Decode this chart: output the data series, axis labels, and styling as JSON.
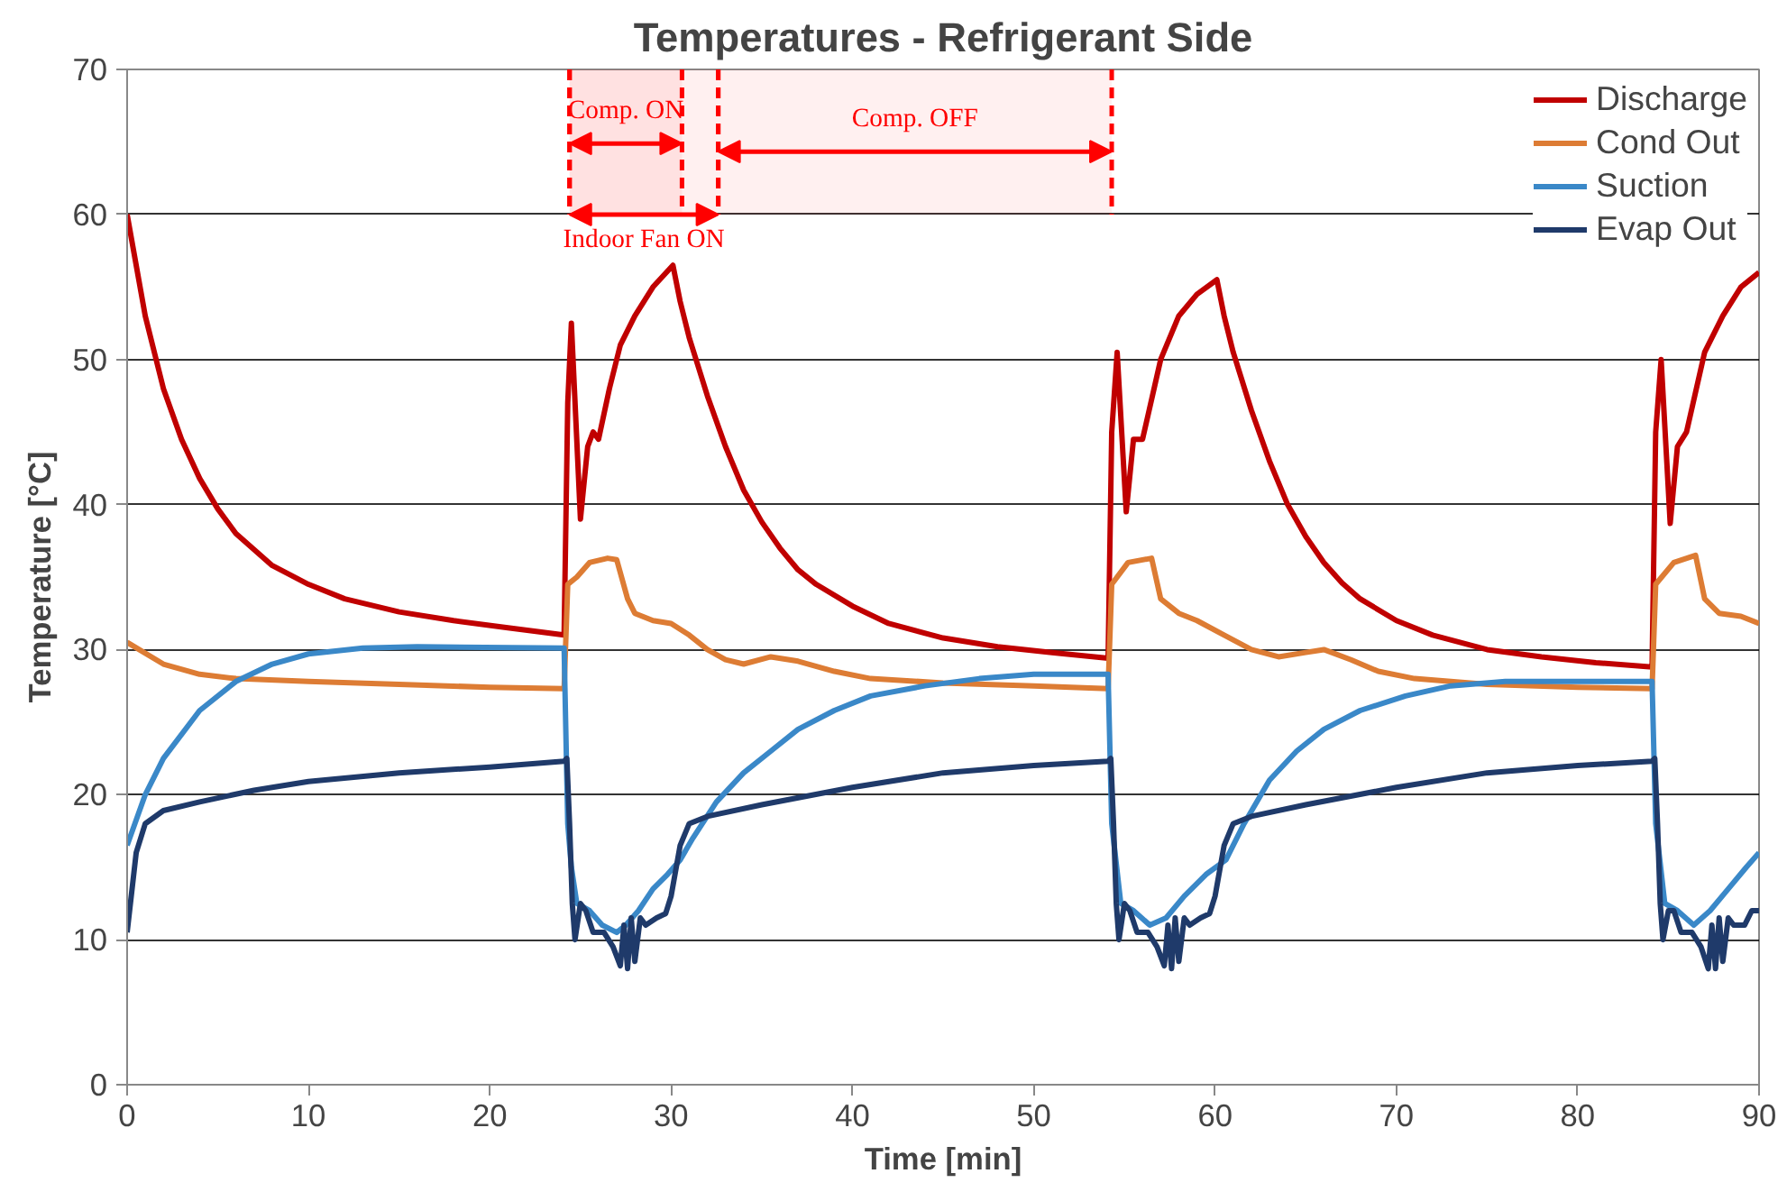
{
  "chart_data": {
    "type": "line",
    "title": "Temperatures - Refrigerant Side",
    "xlabel": "Time [min]",
    "ylabel": "Temperature [°C]",
    "xlim": [
      0,
      90
    ],
    "ylim": [
      0,
      70
    ],
    "xticks": [
      0,
      10,
      20,
      30,
      40,
      50,
      60,
      70,
      80,
      90
    ],
    "yticks": [
      0,
      10,
      20,
      30,
      40,
      50,
      60,
      70
    ],
    "grid": "y",
    "legend": "top right",
    "line_style": "solid",
    "marker": "none",
    "bands": [
      {
        "axis": "x",
        "from": 24.4,
        "to": 30.6,
        "label": "Comp. ON",
        "color": "#ff0000"
      },
      {
        "axis": "x",
        "from": 32.6,
        "to": 54.3,
        "label": "Comp. OFF",
        "color": "#ff0000"
      },
      {
        "axis": "x",
        "from": 24.4,
        "to": 32.6,
        "label": "Indoor Fan ON",
        "color": "#ff0000"
      }
    ],
    "series": [
      {
        "name": "Discharge",
        "color": "#c00000",
        "x": [
          0,
          1,
          2,
          3,
          4,
          5,
          6,
          8,
          10,
          12,
          15,
          18,
          21,
          24.1,
          24.3,
          24.5,
          25.0,
          25.4,
          25.7,
          26,
          26.6,
          27.2,
          28,
          29,
          30.1,
          30.5,
          31,
          32,
          33,
          34,
          35,
          36,
          37,
          38,
          40,
          42,
          45,
          48,
          51,
          54.1,
          54.3,
          54.6,
          55.1,
          55.5,
          56,
          57,
          58,
          59,
          60.1,
          60.5,
          61,
          62,
          63,
          64,
          65,
          66,
          67,
          68,
          70,
          72,
          75,
          78,
          81,
          84.1,
          84.3,
          84.6,
          85.1,
          85.5,
          86,
          87,
          88,
          89,
          90
        ],
        "values": [
          60,
          53,
          48,
          44.5,
          41.8,
          39.7,
          38,
          35.8,
          34.5,
          33.5,
          32.6,
          32,
          31.5,
          31,
          47,
          52.5,
          39,
          44,
          45,
          44.5,
          48,
          51,
          53,
          55,
          56.5,
          54,
          51.5,
          47.5,
          44,
          41,
          38.8,
          37,
          35.5,
          34.5,
          33,
          31.8,
          30.8,
          30.2,
          29.8,
          29.4,
          45,
          50.5,
          39.5,
          44.5,
          44.5,
          50,
          53,
          54.5,
          55.5,
          53,
          50.5,
          46.5,
          43,
          40,
          37.8,
          36,
          34.6,
          33.5,
          32,
          31,
          30,
          29.5,
          29.1,
          28.8,
          45,
          50,
          38.7,
          44,
          45,
          50.5,
          53,
          55,
          56
        ]
      },
      {
        "name": "Cond Out",
        "color": "#dd7c34",
        "x": [
          0,
          2,
          4,
          6,
          10,
          15,
          20,
          24.1,
          24.3,
          24.8,
          25.5,
          26.5,
          27,
          27.6,
          28,
          29,
          30,
          31,
          32,
          33,
          34,
          35.5,
          37,
          39,
          41,
          45,
          50,
          54.1,
          54.3,
          55.2,
          56.5,
          57,
          58,
          59,
          60.5,
          62,
          63.5,
          65,
          66,
          67.5,
          69,
          71,
          75,
          80,
          84.1,
          84.3,
          85.3,
          86.5,
          87,
          87.8,
          89,
          90
        ],
        "values": [
          30.5,
          29,
          28.3,
          28,
          27.8,
          27.6,
          27.4,
          27.3,
          34.5,
          35,
          36,
          36.3,
          36.2,
          33.5,
          32.5,
          32,
          31.8,
          31,
          30,
          29.3,
          29,
          29.5,
          29.2,
          28.5,
          28,
          27.7,
          27.5,
          27.3,
          34.5,
          36,
          36.3,
          33.5,
          32.5,
          32,
          31,
          30,
          29.5,
          29.8,
          30,
          29.3,
          28.5,
          28,
          27.6,
          27.4,
          27.3,
          34.5,
          36,
          36.5,
          33.5,
          32.5,
          32.3,
          31.8
        ]
      },
      {
        "name": "Suction",
        "color": "#3a88c8",
        "x": [
          0,
          1,
          2,
          4,
          6,
          8,
          10,
          13,
          16,
          24.1,
          24.3,
          24.5,
          24.8,
          25.5,
          26.2,
          27,
          27.5,
          28.2,
          29,
          29.8,
          30.5,
          31.2,
          32.5,
          34,
          35.5,
          37,
          39,
          41,
          44,
          47,
          50,
          54.1,
          54.3,
          54.8,
          55.5,
          56.4,
          57.3,
          58.3,
          59.5,
          60.6,
          61.6,
          63,
          64.5,
          66,
          68,
          70.5,
          73,
          76,
          84.1,
          84.3,
          84.8,
          85.5,
          86.4,
          87.3,
          88.3,
          89.3,
          90
        ],
        "values": [
          16.5,
          20,
          22.5,
          25.8,
          27.8,
          29,
          29.7,
          30.1,
          30.2,
          30.1,
          18,
          15,
          12.5,
          12,
          11,
          10.5,
          11,
          12,
          13.5,
          14.5,
          15.5,
          17,
          19.5,
          21.5,
          23,
          24.5,
          25.8,
          26.8,
          27.5,
          28,
          28.3,
          28.3,
          18,
          12.5,
          12,
          11,
          11.5,
          13,
          14.5,
          15.5,
          18,
          21,
          23,
          24.5,
          25.8,
          26.8,
          27.5,
          27.8,
          27.8,
          18,
          12.5,
          12,
          11,
          12,
          13.5,
          15,
          16
        ]
      },
      {
        "name": "Evap Out",
        "color": "#1f3a6a",
        "x": [
          0,
          0.5,
          1,
          2,
          4,
          7,
          10,
          15,
          20,
          24.1,
          24.25,
          24.4,
          24.55,
          24.7,
          25,
          25.3,
          25.7,
          26.3,
          26.8,
          27.2,
          27.4,
          27.6,
          27.8,
          28,
          28.3,
          28.6,
          29.2,
          29.7,
          30,
          30.5,
          31,
          32,
          35,
          40,
          45,
          50,
          54.1,
          54.25,
          54.4,
          54.55,
          54.7,
          55,
          55.3,
          55.7,
          56.3,
          56.8,
          57.2,
          57.4,
          57.6,
          57.8,
          58,
          58.3,
          58.6,
          59.2,
          59.7,
          60,
          60.5,
          61,
          62,
          65,
          70,
          75,
          80,
          84.1,
          84.25,
          84.4,
          84.55,
          84.7,
          85,
          85.3,
          85.7,
          86.3,
          86.8,
          87.2,
          87.4,
          87.6,
          87.8,
          88,
          88.3,
          88.6,
          89.2,
          89.6,
          90
        ],
        "values": [
          10.5,
          16,
          18,
          18.9,
          19.5,
          20.3,
          20.9,
          21.5,
          21.9,
          22.3,
          22.5,
          18,
          12.5,
          10,
          12.5,
          12,
          10.5,
          10.5,
          9.5,
          8.2,
          11,
          8,
          11.5,
          8.5,
          11.5,
          11,
          11.5,
          11.8,
          13,
          16.5,
          18,
          18.5,
          19.3,
          20.5,
          21.5,
          22,
          22.3,
          22.5,
          18,
          12.5,
          10,
          12.5,
          12,
          10.5,
          10.5,
          9.5,
          8.2,
          11,
          8,
          11.5,
          8.5,
          11.5,
          11,
          11.5,
          11.8,
          13,
          16.5,
          18,
          18.5,
          19.3,
          20.5,
          21.5,
          22,
          22.3,
          22.5,
          18,
          12.5,
          10,
          12,
          12,
          10.5,
          10.5,
          9.5,
          8,
          11,
          8,
          11.5,
          8.5,
          11.5,
          11,
          11,
          12,
          12
        ]
      }
    ]
  }
}
